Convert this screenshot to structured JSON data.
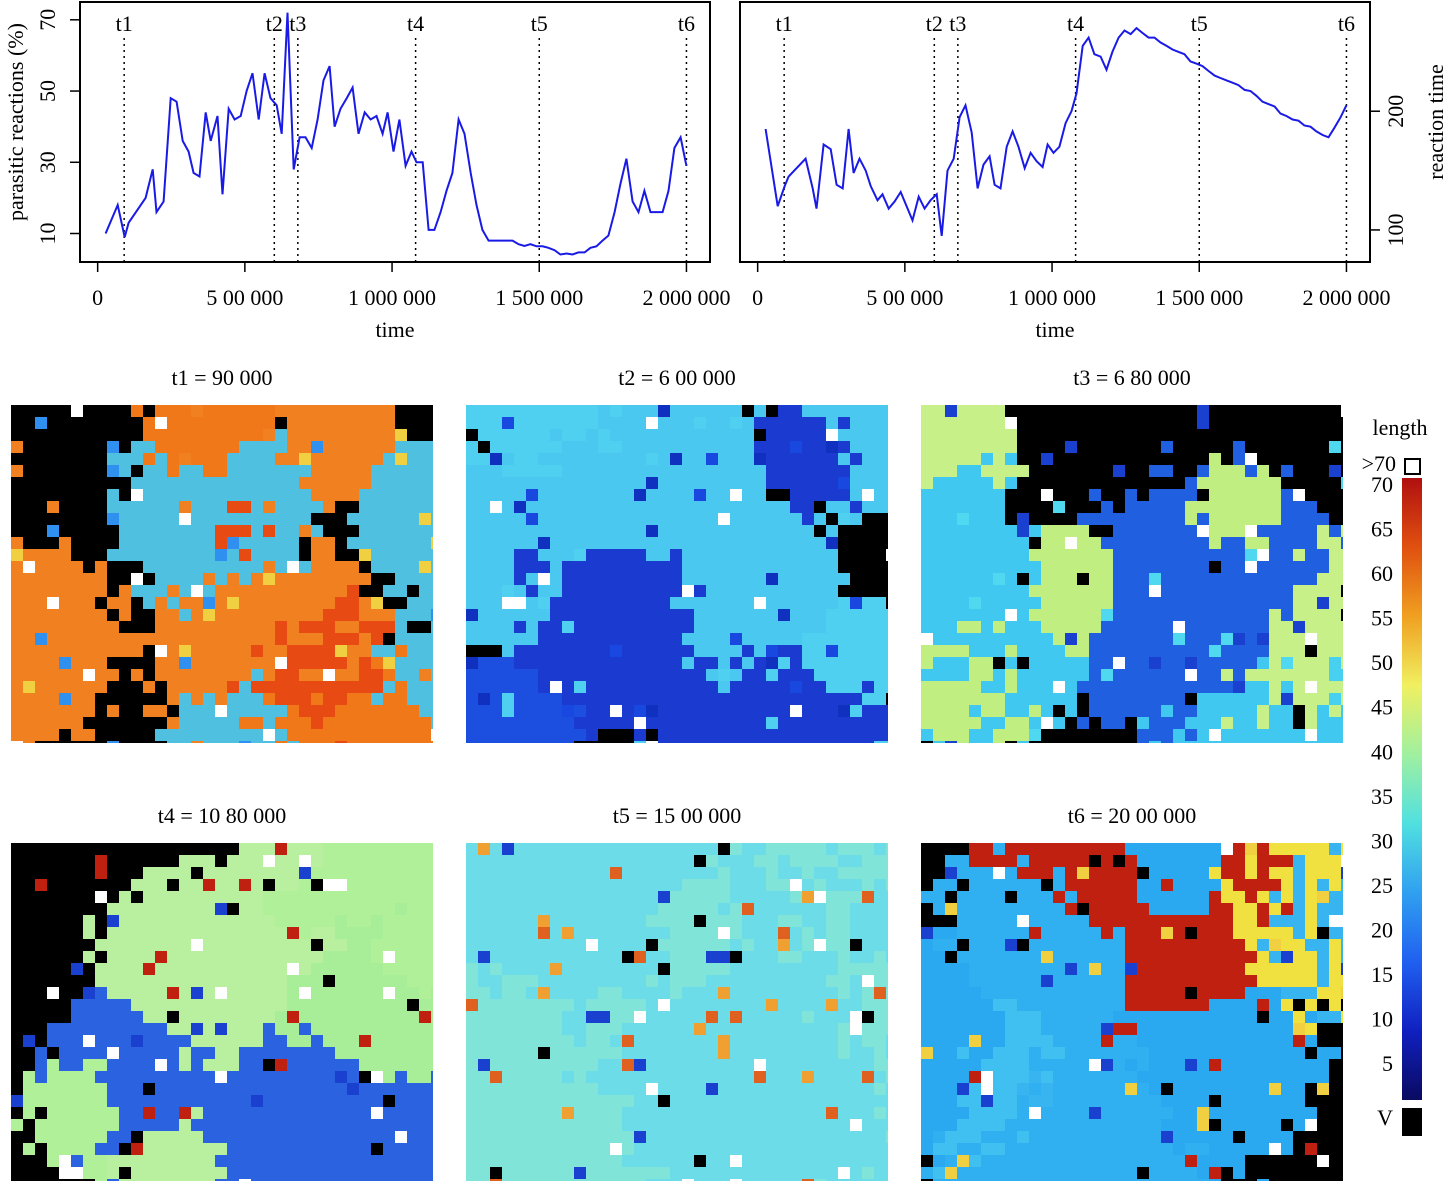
{
  "chart_data": [
    {
      "type": "line",
      "y_label": "parasitic reactions (%)",
      "x_label": "time",
      "yaxis_side": "left",
      "xlim": [
        -60000,
        2080000
      ],
      "ylim": [
        2,
        75
      ],
      "xticks": [
        0,
        {
          "value": 500000,
          "label": "5 00 000"
        },
        {
          "value": 1000000,
          "label": "1 000 000"
        },
        {
          "value": 1500000,
          "label": "1 500 000"
        },
        {
          "value": 2000000,
          "label": "2 000 000"
        }
      ],
      "yticks": [
        10,
        30,
        50,
        70
      ],
      "markers": [
        {
          "label": "t1",
          "x": 90000
        },
        {
          "label": "t2",
          "x": 600000
        },
        {
          "label": "t3",
          "x": 680000
        },
        {
          "label": "t4",
          "x": 1080000
        },
        {
          "label": "t5",
          "x": 1500000
        },
        {
          "label": "t6",
          "x": 2000000
        }
      ],
      "series": [
        {
          "color": "#1a1ae6",
          "x": [
            27000,
            68000,
            92000,
            105000,
            163000,
            187000,
            200000,
            224000,
            248000,
            268000,
            289000,
            309000,
            326000,
            346000,
            367000,
            384000,
            407000,
            424000,
            445000,
            465000,
            486000,
            506000,
            526000,
            547000,
            567000,
            587000,
            608000,
            625000,
            645000,
            666000,
            686000,
            706000,
            727000,
            747000,
            767000,
            788000,
            805000,
            825000,
            846000,
            866000,
            886000,
            907000,
            927000,
            947000,
            968000,
            985000,
            1005000,
            1025000,
            1046000,
            1066000,
            1083000,
            1104000,
            1124000,
            1144000,
            1165000,
            1185000,
            1205000,
            1226000,
            1246000,
            1267000,
            1287000,
            1307000,
            1328000,
            1348000,
            1368000,
            1389000,
            1409000,
            1430000,
            1450000,
            1470000,
            1491000,
            1511000,
            1531000,
            1552000,
            1572000,
            1593000,
            1613000,
            1633000,
            1654000,
            1674000,
            1694000,
            1715000,
            1735000,
            1756000,
            1776000,
            1796000,
            1817000,
            1837000,
            1857000,
            1878000,
            1898000,
            1919000,
            1939000,
            1959000,
            1980000,
            2000000
          ],
          "values": [
            10,
            18,
            9,
            13,
            20,
            28,
            16,
            19,
            48,
            47,
            36,
            33,
            27,
            26,
            44,
            36,
            43,
            21,
            45,
            42,
            43,
            50,
            55,
            42,
            55,
            48,
            46,
            38,
            72,
            28,
            37,
            37,
            34,
            42,
            53,
            57,
            40,
            45,
            48,
            51,
            38,
            44,
            42,
            43,
            38,
            44,
            33,
            42,
            29,
            33,
            30,
            30,
            11,
            11,
            16,
            22,
            27,
            42,
            38,
            27,
            18,
            11,
            8,
            8,
            8,
            8,
            8,
            7,
            6.5,
            7,
            6.4,
            6.4,
            6,
            5.3,
            4.1,
            4.4,
            4.1,
            4.7,
            4.7,
            6,
            6.4,
            8,
            9.4,
            16,
            24,
            31,
            19,
            16,
            22,
            16,
            16,
            16,
            22,
            34,
            37,
            29
          ]
        }
      ]
    },
    {
      "type": "line",
      "y_label": "reaction time",
      "x_label": "time",
      "yaxis_side": "right",
      "xlim": [
        -60000,
        2080000
      ],
      "ylim": [
        73,
        292
      ],
      "xticks": [
        0,
        {
          "value": 500000,
          "label": "5 00 000"
        },
        {
          "value": 1000000,
          "label": "1 000 000"
        },
        {
          "value": 1500000,
          "label": "1 500 000"
        },
        {
          "value": 2000000,
          "label": "2 000 000"
        }
      ],
      "yticks": [
        100,
        200
      ],
      "markers": [
        {
          "label": "t1",
          "x": 90000
        },
        {
          "label": "t2",
          "x": 600000
        },
        {
          "label": "t3",
          "x": 680000
        },
        {
          "label": "t4",
          "x": 1080000
        },
        {
          "label": "t5",
          "x": 1500000
        },
        {
          "label": "t6",
          "x": 2000000
        }
      ],
      "series": [
        {
          "color": "#1a1ae6",
          "x": [
            27000,
            68000,
            92000,
            105000,
            163000,
            187000,
            200000,
            224000,
            248000,
            268000,
            289000,
            309000,
            326000,
            346000,
            367000,
            384000,
            407000,
            424000,
            445000,
            465000,
            486000,
            506000,
            526000,
            547000,
            567000,
            587000,
            608000,
            625000,
            645000,
            666000,
            686000,
            706000,
            727000,
            747000,
            767000,
            788000,
            805000,
            825000,
            846000,
            866000,
            886000,
            907000,
            927000,
            947000,
            968000,
            985000,
            1005000,
            1025000,
            1046000,
            1066000,
            1083000,
            1104000,
            1124000,
            1144000,
            1165000,
            1185000,
            1205000,
            1226000,
            1246000,
            1267000,
            1287000,
            1307000,
            1328000,
            1348000,
            1368000,
            1389000,
            1409000,
            1430000,
            1450000,
            1470000,
            1491000,
            1511000,
            1531000,
            1552000,
            1572000,
            1593000,
            1613000,
            1633000,
            1654000,
            1674000,
            1694000,
            1715000,
            1735000,
            1756000,
            1776000,
            1796000,
            1817000,
            1837000,
            1857000,
            1878000,
            1898000,
            1919000,
            1939000,
            1959000,
            1980000,
            2000000
          ],
          "values": [
            185,
            120,
            137,
            145,
            160,
            135,
            118,
            172,
            168,
            138,
            135,
            185,
            148,
            160,
            150,
            137,
            125,
            130,
            118,
            124,
            132,
            120,
            108,
            128,
            118,
            125,
            130,
            95,
            150,
            160,
            195,
            205,
            182,
            135,
            155,
            162,
            138,
            135,
            170,
            183,
            170,
            152,
            165,
            158,
            153,
            172,
            165,
            170,
            190,
            200,
            215,
            255,
            262,
            248,
            246,
            235,
            250,
            262,
            268,
            265,
            270,
            266,
            262,
            262,
            258,
            255,
            252,
            250,
            248,
            242,
            240,
            238,
            234,
            230,
            228,
            226,
            224,
            222,
            218,
            217,
            213,
            208,
            206,
            204,
            198,
            196,
            193,
            192,
            188,
            187,
            183,
            180,
            178,
            186,
            195,
            205
          ]
        }
      ]
    }
  ],
  "panels": [
    {
      "title": "t1 = 90 000"
    },
    {
      "title": "t2 = 6 00 000"
    },
    {
      "title": "t3 = 6 80 000"
    },
    {
      "title": "t4 = 10 80 000"
    },
    {
      "title": "t5 = 15 00 000"
    },
    {
      "title": "t6 = 20 00 000"
    }
  ],
  "colorbar": {
    "title": "length",
    "top_label": ">70",
    "bottom_label": "V",
    "ticks": [
      70,
      65,
      60,
      55,
      50,
      45,
      40,
      35,
      30,
      25,
      20,
      15,
      10,
      5
    ],
    "colors": [
      "#0a0a60",
      "#1020c0",
      "#2060f0",
      "#30a0f0",
      "#50e0e0",
      "#a0f0a0",
      "#f0f060",
      "#f0a020",
      "#e05010",
      "#b01010"
    ]
  }
}
